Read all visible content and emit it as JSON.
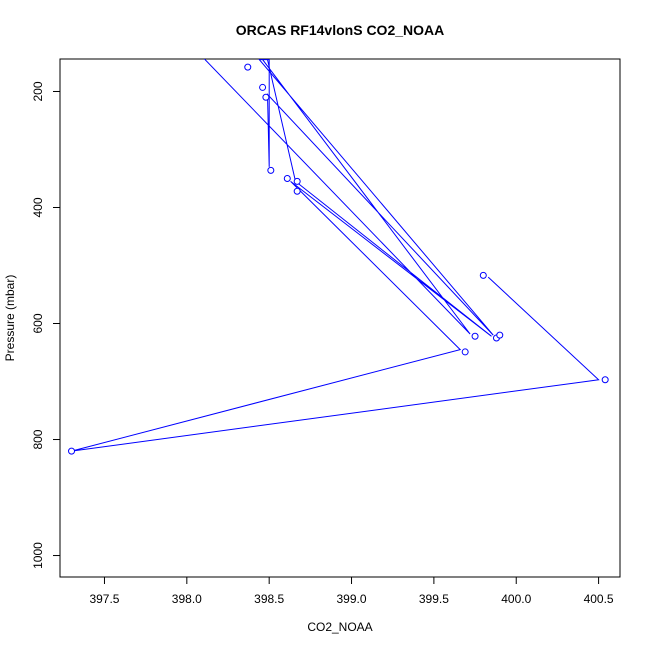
{
  "chart_data": {
    "type": "line",
    "title": "ORCAS RF14vlonS CO2_NOAA",
    "xlabel": "CO2_NOAA",
    "ylabel": "Pressure (mbar)",
    "xlim": [
      397.23,
      400.63
    ],
    "ylim": [
      1037,
      144
    ],
    "y_reversed": true,
    "grid": false,
    "legend": "none",
    "line_color": "#0000ff",
    "marker": "open-circle",
    "x_ticks": [
      397.5,
      398.0,
      398.5,
      399.0,
      399.5,
      400.0,
      400.5
    ],
    "x_tick_labels": [
      "397.5",
      "398.0",
      "398.5",
      "399.0",
      "399.5",
      "400.0",
      "400.5"
    ],
    "y_ticks": [
      200,
      400,
      600,
      800,
      1000
    ],
    "y_tick_labels": [
      "200",
      "400",
      "600",
      "800",
      "1000"
    ],
    "series": [
      {
        "points_markers": [
          [
            398.37,
            158
          ],
          [
            398.46,
            193
          ],
          [
            398.48,
            210
          ],
          [
            398.51,
            336
          ],
          [
            398.61,
            350
          ],
          [
            398.67,
            355
          ],
          [
            398.67,
            372
          ],
          [
            399.75,
            622
          ],
          [
            399.88,
            625
          ],
          [
            399.9,
            620
          ],
          [
            399.8,
            517
          ],
          [
            400.54,
            697
          ],
          [
            399.69,
            649
          ],
          [
            397.3,
            820
          ]
        ],
        "path": [
          [
            398.1,
            142
          ],
          [
            399.72,
            618
          ],
          [
            398.46,
            145
          ],
          [
            398.5,
            145
          ],
          [
            398.5,
            330
          ],
          [
            398.49,
            205
          ],
          [
            399.86,
            620
          ],
          [
            398.44,
            145
          ],
          [
            398.49,
            145
          ],
          [
            398.66,
            355
          ],
          [
            399.85,
            622
          ],
          [
            398.63,
            355
          ],
          [
            399.66,
            645
          ],
          [
            397.3,
            820
          ],
          [
            400.5,
            697
          ],
          [
            399.83,
            520
          ]
        ]
      }
    ]
  }
}
